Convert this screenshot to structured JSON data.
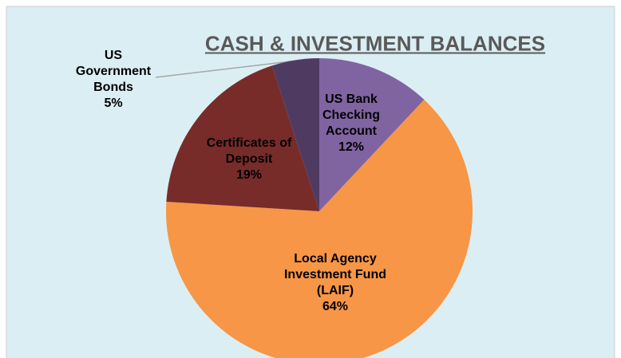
{
  "chart_data": {
    "type": "pie",
    "title": "CASH & INVESTMENT BALANCES",
    "categories": [
      "US Bank Checking Account",
      "Local Agency Investment Fund (LAIF)",
      "Certificates of Deposit",
      "US Government Bonds"
    ],
    "values": [
      12,
      64,
      19,
      5
    ],
    "value_labels": [
      "12%",
      "64%",
      "19%",
      "5%"
    ],
    "colors": [
      "#8064a2",
      "#f79646",
      "#772c2a",
      "#4f3b62"
    ]
  }
}
